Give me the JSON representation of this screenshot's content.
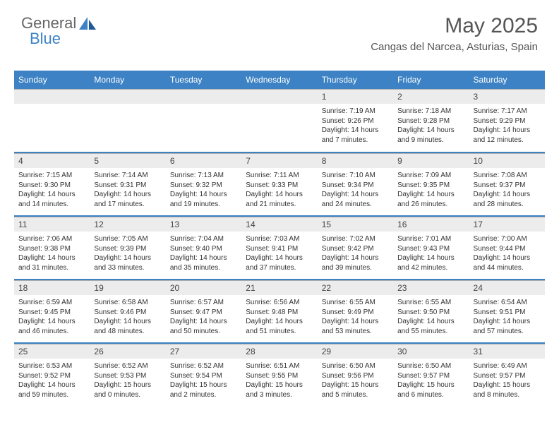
{
  "logo": {
    "word1": "General",
    "word2": "Blue"
  },
  "title": "May 2025",
  "location": "Cangas del Narcea, Asturias, Spain",
  "colors": {
    "header_bg": "#3c82c4",
    "header_fg": "#ffffff",
    "daynum_bg": "#ececec",
    "text": "#333333",
    "title": "#555555"
  },
  "weekdays": [
    "Sunday",
    "Monday",
    "Tuesday",
    "Wednesday",
    "Thursday",
    "Friday",
    "Saturday"
  ],
  "weeks": [
    [
      {
        "blank": true
      },
      {
        "blank": true
      },
      {
        "blank": true
      },
      {
        "blank": true
      },
      {
        "n": "1",
        "sr": "Sunrise: 7:19 AM",
        "ss": "Sunset: 9:26 PM",
        "dl": "Daylight: 14 hours and 7 minutes."
      },
      {
        "n": "2",
        "sr": "Sunrise: 7:18 AM",
        "ss": "Sunset: 9:28 PM",
        "dl": "Daylight: 14 hours and 9 minutes."
      },
      {
        "n": "3",
        "sr": "Sunrise: 7:17 AM",
        "ss": "Sunset: 9:29 PM",
        "dl": "Daylight: 14 hours and 12 minutes."
      }
    ],
    [
      {
        "n": "4",
        "sr": "Sunrise: 7:15 AM",
        "ss": "Sunset: 9:30 PM",
        "dl": "Daylight: 14 hours and 14 minutes."
      },
      {
        "n": "5",
        "sr": "Sunrise: 7:14 AM",
        "ss": "Sunset: 9:31 PM",
        "dl": "Daylight: 14 hours and 17 minutes."
      },
      {
        "n": "6",
        "sr": "Sunrise: 7:13 AM",
        "ss": "Sunset: 9:32 PM",
        "dl": "Daylight: 14 hours and 19 minutes."
      },
      {
        "n": "7",
        "sr": "Sunrise: 7:11 AM",
        "ss": "Sunset: 9:33 PM",
        "dl": "Daylight: 14 hours and 21 minutes."
      },
      {
        "n": "8",
        "sr": "Sunrise: 7:10 AM",
        "ss": "Sunset: 9:34 PM",
        "dl": "Daylight: 14 hours and 24 minutes."
      },
      {
        "n": "9",
        "sr": "Sunrise: 7:09 AM",
        "ss": "Sunset: 9:35 PM",
        "dl": "Daylight: 14 hours and 26 minutes."
      },
      {
        "n": "10",
        "sr": "Sunrise: 7:08 AM",
        "ss": "Sunset: 9:37 PM",
        "dl": "Daylight: 14 hours and 28 minutes."
      }
    ],
    [
      {
        "n": "11",
        "sr": "Sunrise: 7:06 AM",
        "ss": "Sunset: 9:38 PM",
        "dl": "Daylight: 14 hours and 31 minutes."
      },
      {
        "n": "12",
        "sr": "Sunrise: 7:05 AM",
        "ss": "Sunset: 9:39 PM",
        "dl": "Daylight: 14 hours and 33 minutes."
      },
      {
        "n": "13",
        "sr": "Sunrise: 7:04 AM",
        "ss": "Sunset: 9:40 PM",
        "dl": "Daylight: 14 hours and 35 minutes."
      },
      {
        "n": "14",
        "sr": "Sunrise: 7:03 AM",
        "ss": "Sunset: 9:41 PM",
        "dl": "Daylight: 14 hours and 37 minutes."
      },
      {
        "n": "15",
        "sr": "Sunrise: 7:02 AM",
        "ss": "Sunset: 9:42 PM",
        "dl": "Daylight: 14 hours and 39 minutes."
      },
      {
        "n": "16",
        "sr": "Sunrise: 7:01 AM",
        "ss": "Sunset: 9:43 PM",
        "dl": "Daylight: 14 hours and 42 minutes."
      },
      {
        "n": "17",
        "sr": "Sunrise: 7:00 AM",
        "ss": "Sunset: 9:44 PM",
        "dl": "Daylight: 14 hours and 44 minutes."
      }
    ],
    [
      {
        "n": "18",
        "sr": "Sunrise: 6:59 AM",
        "ss": "Sunset: 9:45 PM",
        "dl": "Daylight: 14 hours and 46 minutes."
      },
      {
        "n": "19",
        "sr": "Sunrise: 6:58 AM",
        "ss": "Sunset: 9:46 PM",
        "dl": "Daylight: 14 hours and 48 minutes."
      },
      {
        "n": "20",
        "sr": "Sunrise: 6:57 AM",
        "ss": "Sunset: 9:47 PM",
        "dl": "Daylight: 14 hours and 50 minutes."
      },
      {
        "n": "21",
        "sr": "Sunrise: 6:56 AM",
        "ss": "Sunset: 9:48 PM",
        "dl": "Daylight: 14 hours and 51 minutes."
      },
      {
        "n": "22",
        "sr": "Sunrise: 6:55 AM",
        "ss": "Sunset: 9:49 PM",
        "dl": "Daylight: 14 hours and 53 minutes."
      },
      {
        "n": "23",
        "sr": "Sunrise: 6:55 AM",
        "ss": "Sunset: 9:50 PM",
        "dl": "Daylight: 14 hours and 55 minutes."
      },
      {
        "n": "24",
        "sr": "Sunrise: 6:54 AM",
        "ss": "Sunset: 9:51 PM",
        "dl": "Daylight: 14 hours and 57 minutes."
      }
    ],
    [
      {
        "n": "25",
        "sr": "Sunrise: 6:53 AM",
        "ss": "Sunset: 9:52 PM",
        "dl": "Daylight: 14 hours and 59 minutes."
      },
      {
        "n": "26",
        "sr": "Sunrise: 6:52 AM",
        "ss": "Sunset: 9:53 PM",
        "dl": "Daylight: 15 hours and 0 minutes."
      },
      {
        "n": "27",
        "sr": "Sunrise: 6:52 AM",
        "ss": "Sunset: 9:54 PM",
        "dl": "Daylight: 15 hours and 2 minutes."
      },
      {
        "n": "28",
        "sr": "Sunrise: 6:51 AM",
        "ss": "Sunset: 9:55 PM",
        "dl": "Daylight: 15 hours and 3 minutes."
      },
      {
        "n": "29",
        "sr": "Sunrise: 6:50 AM",
        "ss": "Sunset: 9:56 PM",
        "dl": "Daylight: 15 hours and 5 minutes."
      },
      {
        "n": "30",
        "sr": "Sunrise: 6:50 AM",
        "ss": "Sunset: 9:57 PM",
        "dl": "Daylight: 15 hours and 6 minutes."
      },
      {
        "n": "31",
        "sr": "Sunrise: 6:49 AM",
        "ss": "Sunset: 9:57 PM",
        "dl": "Daylight: 15 hours and 8 minutes."
      }
    ]
  ]
}
